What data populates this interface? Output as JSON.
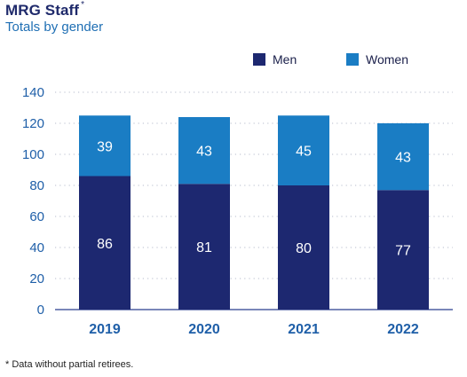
{
  "header": {
    "title": "MRG Staff",
    "title_mark": "*",
    "subtitle": "Totals by gender"
  },
  "footnote": "* Data without partial retirees.",
  "colors": {
    "men": "#1d2870",
    "women": "#1a7dc4",
    "axis_text": "#1f5fa8",
    "label_text": "#ffffff",
    "grid": "#b7bccc"
  },
  "chart_data": {
    "type": "bar",
    "stacked": true,
    "categories": [
      "2019",
      "2020",
      "2021",
      "2022"
    ],
    "series": [
      {
        "name": "Men",
        "values": [
          86,
          81,
          80,
          77
        ]
      },
      {
        "name": "Women",
        "values": [
          39,
          43,
          45,
          43
        ]
      }
    ],
    "title": "MRG Staff",
    "subtitle": "Totals by gender",
    "ylim": [
      0,
      140
    ],
    "yticks": [
      0,
      20,
      40,
      60,
      80,
      100,
      120,
      140
    ],
    "grid": true,
    "legend_position": "top-right"
  }
}
